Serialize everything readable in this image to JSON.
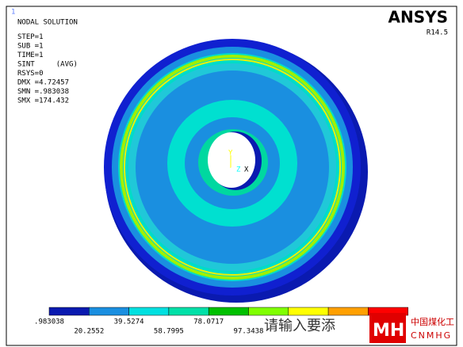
{
  "window_number": "1",
  "info": [
    "NODAL SOLUTION",
    "STEP=1",
    "SUB =1",
    "TIME=1",
    "SINT     (AVG)",
    "RSYS=0",
    "DMX =4.72457",
    "SMN =.983038",
    "SMX =174.432"
  ],
  "brand": "ANSYS",
  "version": "R14.5",
  "triad": [
    "Y",
    "Z",
    "X"
  ],
  "legend_labels": [
    ".983038",
    "20.2552",
    "39.5274",
    "58.7995",
    "78.0717",
    "97.3438"
  ],
  "watermark": "请输入要添",
  "logo": {
    "name": "中国煤化工",
    "code": "CNMHG"
  }
}
